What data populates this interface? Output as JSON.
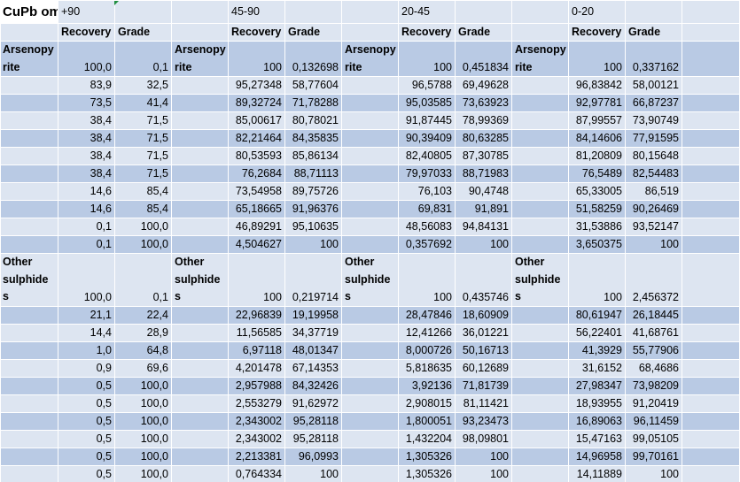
{
  "sheet_title": "CuPb ommalt",
  "size_classes": [
    "+90",
    "45-90",
    "20-45",
    "0-20"
  ],
  "column_headers": {
    "recovery": "Recovery",
    "grade": "Grade"
  },
  "blocks": [
    {
      "label": "Arsenopyrite",
      "label_lines": [
        "Arsenopy",
        "rite"
      ],
      "label_span": 2,
      "rows": [
        [
          "100,0",
          "0,1",
          "100",
          "0,132698",
          "100",
          "0,451834",
          "100",
          "0,337162"
        ],
        [
          "83,9",
          "32,5",
          "95,27348",
          "58,77604",
          "96,5788",
          "69,49628",
          "96,83842",
          "58,00121"
        ],
        [
          "73,5",
          "41,4",
          "89,32724",
          "71,78288",
          "95,03585",
          "73,63923",
          "92,97781",
          "66,87237"
        ],
        [
          "38,4",
          "71,5",
          "85,00617",
          "80,78021",
          "91,87445",
          "78,99369",
          "87,99557",
          "73,90749"
        ],
        [
          "38,4",
          "71,5",
          "82,21464",
          "84,35835",
          "90,39409",
          "80,63285",
          "84,14606",
          "77,91595"
        ],
        [
          "38,4",
          "71,5",
          "80,53593",
          "85,86134",
          "82,40805",
          "87,30785",
          "81,20809",
          "80,15648"
        ],
        [
          "38,4",
          "71,5",
          "76,2684",
          "88,71113",
          "79,97033",
          "88,71983",
          "76,5489",
          "82,54483"
        ],
        [
          "14,6",
          "85,4",
          "73,54958",
          "89,75726",
          "76,103",
          "90,4748",
          "65,33005",
          "86,519"
        ],
        [
          "14,6",
          "85,4",
          "65,18665",
          "91,96376",
          "69,831",
          "91,891",
          "51,58259",
          "90,26469"
        ],
        [
          "0,1",
          "100,0",
          "46,89291",
          "95,10635",
          "48,56083",
          "94,84131",
          "31,53886",
          "93,52147"
        ],
        [
          "0,1",
          "100,0",
          "4,504627",
          "100",
          "0,357692",
          "100",
          "3,650375",
          "100"
        ]
      ]
    },
    {
      "label": "Other sulphides",
      "label_lines": [
        "Other",
        "sulphide",
        "s"
      ],
      "label_span": 3,
      "rows": [
        [
          "100,0",
          "0,1",
          "100",
          "0,219714",
          "100",
          "0,435746",
          "100",
          "2,456372"
        ],
        [
          "21,1",
          "22,4",
          "22,96839",
          "19,19958",
          "28,47846",
          "18,60909",
          "80,61947",
          "26,18445"
        ],
        [
          "14,4",
          "28,9",
          "11,56585",
          "34,37719",
          "12,41266",
          "36,01221",
          "56,22401",
          "41,68761"
        ],
        [
          "1,0",
          "64,8",
          "6,97118",
          "48,01347",
          "8,000726",
          "50,16713",
          "41,3929",
          "55,77906"
        ],
        [
          "0,9",
          "69,6",
          "4,201478",
          "67,14353",
          "5,818635",
          "60,12689",
          "31,6152",
          "68,4686"
        ],
        [
          "0,5",
          "100,0",
          "2,957988",
          "84,32426",
          "3,92136",
          "71,81739",
          "27,98347",
          "73,98209"
        ],
        [
          "0,5",
          "100,0",
          "2,553279",
          "91,62972",
          "2,908015",
          "81,11421",
          "18,93955",
          "91,20419"
        ],
        [
          "0,5",
          "100,0",
          "2,343002",
          "95,28118",
          "1,800051",
          "93,23473",
          "16,89063",
          "96,11459"
        ],
        [
          "0,5",
          "100,0",
          "2,343002",
          "95,28118",
          "1,432204",
          "98,09801",
          "15,47163",
          "99,05105"
        ],
        [
          "0,5",
          "100,0",
          "2,213381",
          "96,0993",
          "1,305326",
          "100",
          "14,96958",
          "99,70161"
        ],
        [
          "0,5",
          "100,0",
          "0,764334",
          "100",
          "1,305326",
          "100",
          "14,11889",
          "100"
        ]
      ]
    }
  ]
}
